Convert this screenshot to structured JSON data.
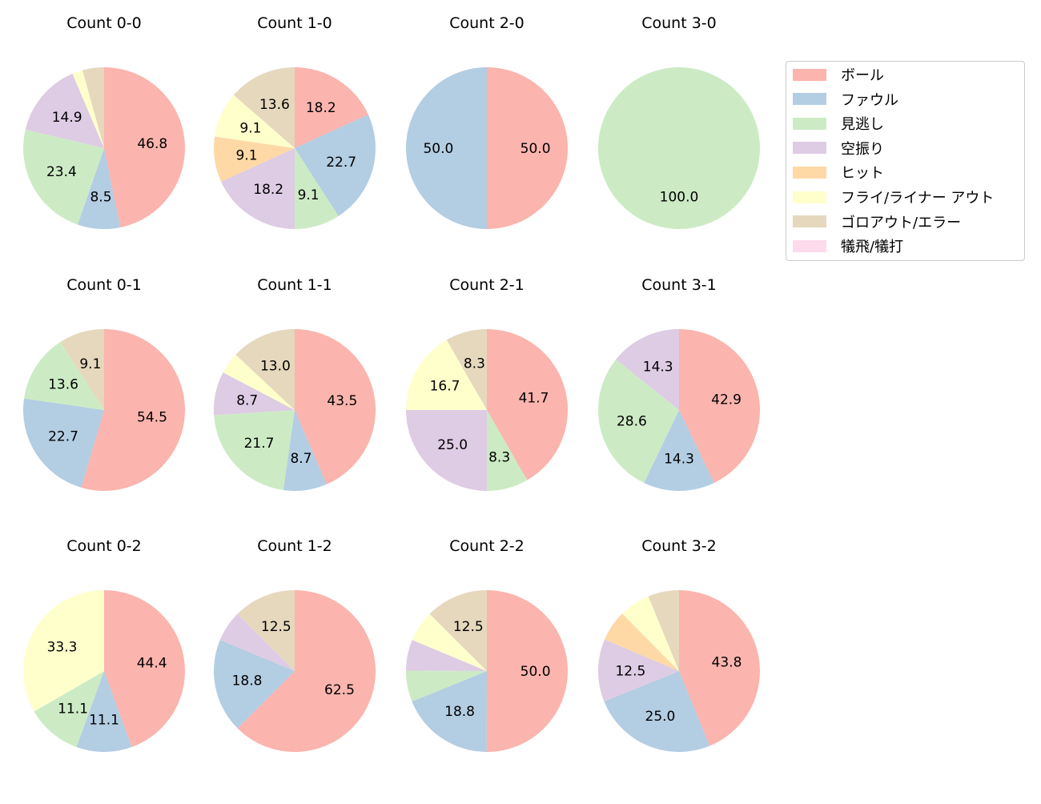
{
  "chart_data": {
    "type": "pie",
    "categories": [
      "ボール",
      "ファウル",
      "見逃し",
      "空振り",
      "ヒット",
      "フライ/ライナー アウト",
      "ゴロアウト/エラー",
      "犠飛/犠打"
    ],
    "colors": [
      "#fbb4ae",
      "#b3cde3",
      "#ccebc5",
      "#decbe4",
      "#fed9a6",
      "#ffffcc",
      "#e5d8bd",
      "#fddaec"
    ],
    "start": "top",
    "direction": "clockwise",
    "legend_position": "right",
    "charts": [
      {
        "title": "Count 0-0",
        "values": [
          46.8,
          8.5,
          23.4,
          14.9,
          0,
          2.1,
          4.3,
          0
        ]
      },
      {
        "title": "Count 1-0",
        "values": [
          18.2,
          22.7,
          9.1,
          18.2,
          9.1,
          9.1,
          13.6,
          0
        ]
      },
      {
        "title": "Count 2-0",
        "values": [
          50.0,
          50.0,
          0,
          0,
          0,
          0,
          0,
          0
        ]
      },
      {
        "title": "Count 3-0",
        "values": [
          0,
          0,
          100.0,
          0,
          0,
          0,
          0,
          0
        ]
      },
      {
        "title": "Count 0-1",
        "values": [
          54.5,
          22.7,
          13.6,
          0,
          0,
          0,
          9.1,
          0
        ]
      },
      {
        "title": "Count 1-1",
        "values": [
          43.5,
          8.7,
          21.7,
          8.7,
          0,
          4.3,
          13.0,
          0
        ]
      },
      {
        "title": "Count 2-1",
        "values": [
          41.7,
          0,
          8.3,
          25.0,
          0,
          16.7,
          8.3,
          0
        ]
      },
      {
        "title": "Count 3-1",
        "values": [
          42.9,
          14.3,
          28.6,
          14.3,
          0,
          0,
          0,
          0
        ]
      },
      {
        "title": "Count 0-2",
        "values": [
          44.4,
          11.1,
          11.1,
          0,
          0,
          33.3,
          0,
          0
        ]
      },
      {
        "title": "Count 1-2",
        "values": [
          62.5,
          18.8,
          0,
          6.2,
          0,
          0,
          12.5,
          0
        ]
      },
      {
        "title": "Count 2-2",
        "values": [
          50.0,
          18.8,
          6.2,
          6.2,
          0,
          6.2,
          12.5,
          0
        ]
      },
      {
        "title": "Count 3-2",
        "values": [
          43.8,
          25.0,
          0,
          12.5,
          6.2,
          6.2,
          6.2,
          0
        ]
      }
    ]
  }
}
